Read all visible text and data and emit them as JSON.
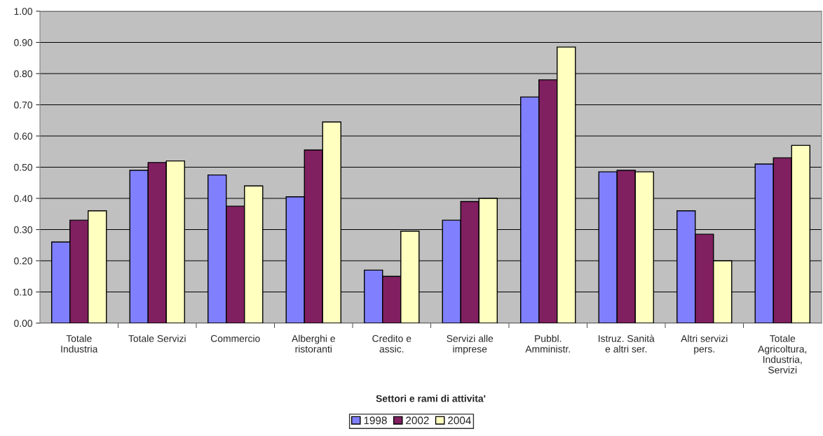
{
  "chart_data": {
    "type": "bar",
    "xlabel": "Settori e rami di attivita'",
    "categories": [
      "Totale\nIndustria",
      "Totale Servizi",
      "Commercio",
      "Alberghi e\nristoranti",
      "Credito e\nassic.",
      "Servizi alle\nimprese",
      "Pubbl.\nAmministr.",
      "Istruz. Sanità\ne altri ser.",
      "Altri servizi\npers.",
      "Totale\nAgricoltura,\nIndustria,\nServizi"
    ],
    "series": [
      {
        "name": "1998",
        "color": "#8080ff",
        "values": [
          0.26,
          0.49,
          0.475,
          0.405,
          0.17,
          0.33,
          0.725,
          0.485,
          0.36,
          0.51
        ]
      },
      {
        "name": "2002",
        "color": "#802060",
        "values": [
          0.33,
          0.515,
          0.375,
          0.555,
          0.15,
          0.39,
          0.78,
          0.49,
          0.285,
          0.53
        ]
      },
      {
        "name": "2004",
        "color": "#ffffc0",
        "values": [
          0.36,
          0.52,
          0.44,
          0.645,
          0.295,
          0.4,
          0.885,
          0.485,
          0.2,
          0.57
        ]
      }
    ],
    "ylim": [
      0,
      1
    ],
    "yticks": [
      {
        "value": 0,
        "label": "0.00"
      },
      {
        "value": 0.1,
        "label": "0.10"
      },
      {
        "value": 0.2,
        "label": "0.20"
      },
      {
        "value": 0.3,
        "label": "0.30"
      },
      {
        "value": 0.4,
        "label": "0.40"
      },
      {
        "value": 0.5,
        "label": "0.50"
      },
      {
        "value": 0.6,
        "label": "0.60"
      },
      {
        "value": 0.7,
        "label": "0.70"
      },
      {
        "value": 0.8,
        "label": "0.80"
      },
      {
        "value": 0.9,
        "label": "0.90"
      },
      {
        "value": 1,
        "label": "1.00"
      }
    ],
    "grid": "y",
    "legend": "bottom"
  }
}
